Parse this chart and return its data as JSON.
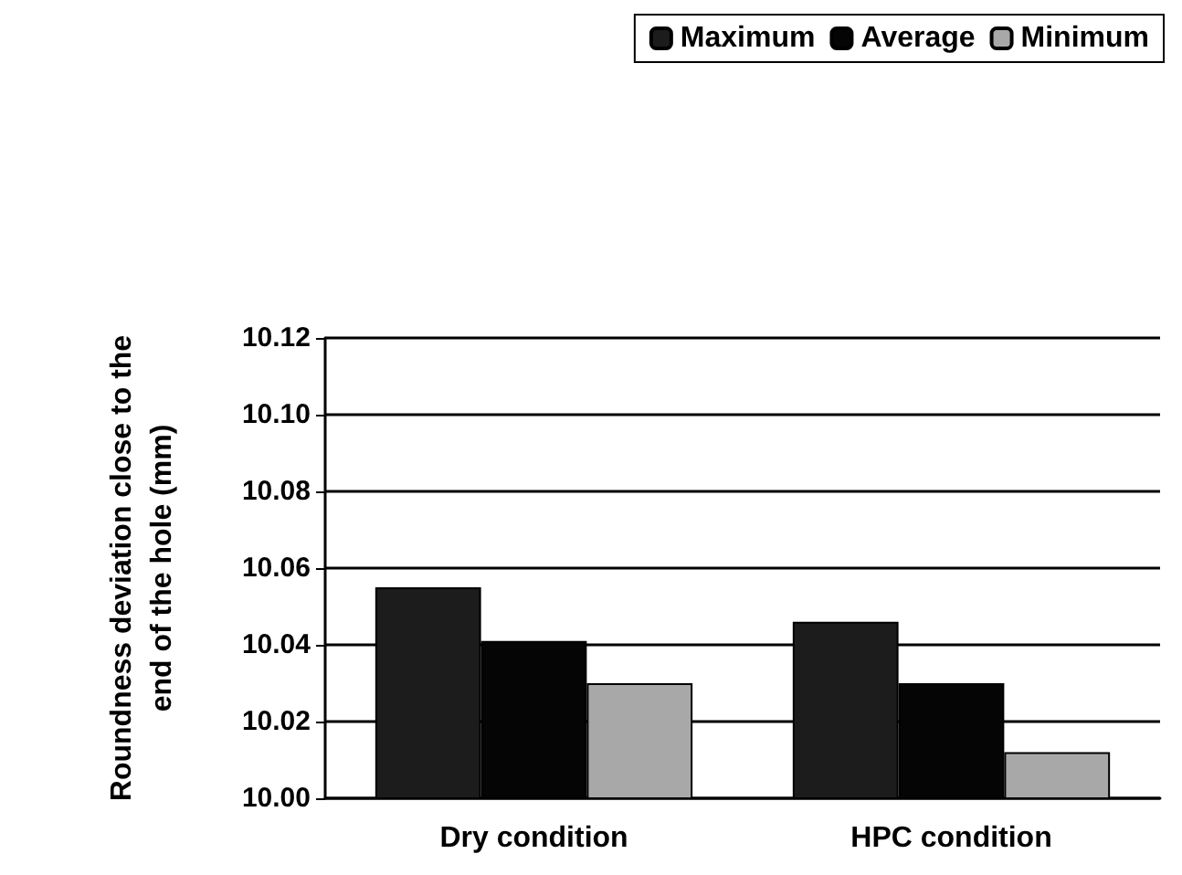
{
  "chart_data": {
    "type": "bar",
    "ylabel": "Roundness deviation close to the\nend of the hole (mm)",
    "categories": [
      "Dry condition",
      "HPC condition"
    ],
    "series": [
      {
        "name": "Maximum",
        "color": "#1c1c1c",
        "values": [
          10.055,
          10.046
        ]
      },
      {
        "name": "Average",
        "color": "#050505",
        "values": [
          10.041,
          10.03
        ]
      },
      {
        "name": "Minimum",
        "color": "#a8a8a8",
        "values": [
          10.03,
          10.012
        ]
      }
    ],
    "ylim": [
      10.0,
      10.12
    ],
    "yticks": [
      {
        "value": 10.0,
        "label": "10.00"
      },
      {
        "value": 10.02,
        "label": "10.02"
      },
      {
        "value": 10.04,
        "label": "10.04"
      },
      {
        "value": 10.06,
        "label": "10.06"
      },
      {
        "value": 10.08,
        "label": "10.08"
      },
      {
        "value": 10.1,
        "label": "10.10"
      },
      {
        "value": 10.12,
        "label": "10.12"
      }
    ],
    "grid": "y",
    "legend": "top right"
  }
}
